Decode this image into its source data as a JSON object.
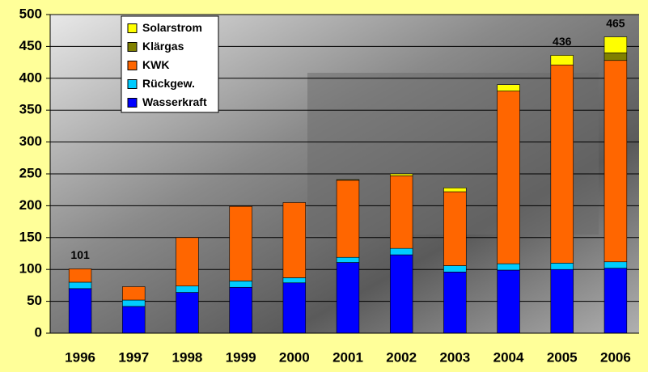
{
  "chart_data": {
    "type": "stacked_bar",
    "categories": [
      "1996",
      "1997",
      "1998",
      "1999",
      "2000",
      "2001",
      "2002",
      "2003",
      "2004",
      "2005",
      "2006"
    ],
    "series": [
      {
        "name": "Wasserkraft",
        "color": "#0000ff",
        "values": [
          70,
          42,
          64,
          72,
          79,
          111,
          123,
          96,
          99,
          100,
          102
        ]
      },
      {
        "name": "Rückgew.",
        "color": "#00ccff",
        "values": [
          10,
          10,
          10,
          10,
          8,
          8,
          10,
          10,
          10,
          10,
          10
        ]
      },
      {
        "name": "KWK",
        "color": "#ff6600",
        "values": [
          21,
          21,
          76,
          117,
          118,
          121,
          114,
          116,
          271,
          311,
          316
        ]
      },
      {
        "name": "Klärgas",
        "color": "#808000",
        "values": [
          0,
          0,
          0,
          0,
          0,
          0,
          0,
          0,
          0,
          0,
          12
        ]
      },
      {
        "name": "Solarstrom",
        "color": "#ffff00",
        "values": [
          0,
          0,
          0,
          0,
          0,
          1,
          3,
          6,
          10,
          15,
          25
        ]
      }
    ],
    "annotations": [
      {
        "x": "1996",
        "value": 101
      },
      {
        "x": "2005",
        "value": 436
      },
      {
        "x": "2006",
        "value": 465
      }
    ],
    "ylim": [
      0,
      500
    ],
    "yticks": [
      0,
      50,
      100,
      150,
      200,
      250,
      300,
      350,
      400,
      450,
      500
    ],
    "grid": true
  }
}
